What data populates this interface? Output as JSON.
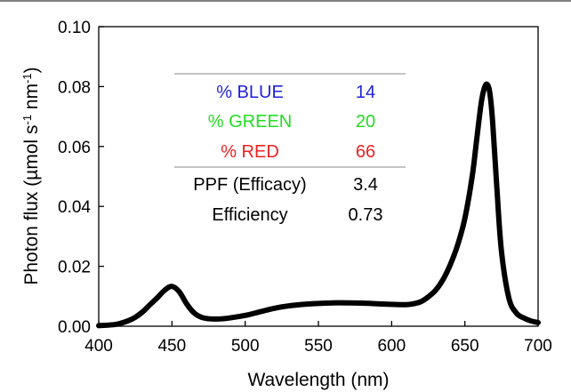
{
  "chart_data": {
    "type": "line",
    "xlabel": "Wavelength (nm)",
    "ylabel_main": "Photon flux (µmol s",
    "ylabel_exp1": "-1",
    "ylabel_mid": " nm",
    "ylabel_exp2": "-1",
    "ylabel_end": ")",
    "xlim": [
      400,
      700
    ],
    "ylim": [
      0,
      0.1
    ],
    "x_ticks": [
      "400",
      "450",
      "500",
      "550",
      "600",
      "650",
      "700"
    ],
    "y_ticks": [
      "0.00",
      "0.02",
      "0.04",
      "0.06",
      "0.08",
      "0.10"
    ],
    "grid": false,
    "legend": "none",
    "line_color": "#000000",
    "series": [
      {
        "x": [
          400,
          410,
          415,
          420,
          425,
          430,
          435,
          440,
          445,
          450,
          455,
          460,
          465,
          470,
          475,
          480,
          485,
          490,
          500,
          510,
          520,
          530,
          540,
          550,
          560,
          570,
          580,
          590,
          600,
          610,
          615,
          620,
          625,
          630,
          635,
          640,
          645,
          650,
          655,
          658,
          661,
          663,
          665,
          667,
          669,
          672,
          675,
          680,
          685,
          690,
          695,
          700
        ],
        "y": [
          0.0002,
          0.0005,
          0.001,
          0.0018,
          0.003,
          0.0048,
          0.0072,
          0.0095,
          0.012,
          0.0133,
          0.0115,
          0.0075,
          0.0045,
          0.003,
          0.0025,
          0.0024,
          0.0025,
          0.0028,
          0.0036,
          0.0048,
          0.006,
          0.0068,
          0.0073,
          0.0076,
          0.0078,
          0.0078,
          0.0077,
          0.0075,
          0.0073,
          0.0072,
          0.0075,
          0.0082,
          0.0098,
          0.012,
          0.0155,
          0.0205,
          0.027,
          0.036,
          0.05,
          0.062,
          0.074,
          0.079,
          0.0808,
          0.078,
          0.068,
          0.045,
          0.025,
          0.0095,
          0.0045,
          0.0028,
          0.0018,
          0.0012
        ]
      }
    ],
    "table": {
      "colors": [
        {
          "label": "% BLUE",
          "value": "14",
          "color": "#2222dd"
        },
        {
          "label": "% GREEN",
          "value": "20",
          "color": "#22dd22"
        },
        {
          "label": "% RED",
          "value": "66",
          "color": "#ee2222"
        }
      ],
      "metrics": [
        {
          "label": "PPF (Efficacy)",
          "value": "3.4"
        },
        {
          "label": "Efficiency",
          "value": "0.73"
        }
      ]
    }
  }
}
